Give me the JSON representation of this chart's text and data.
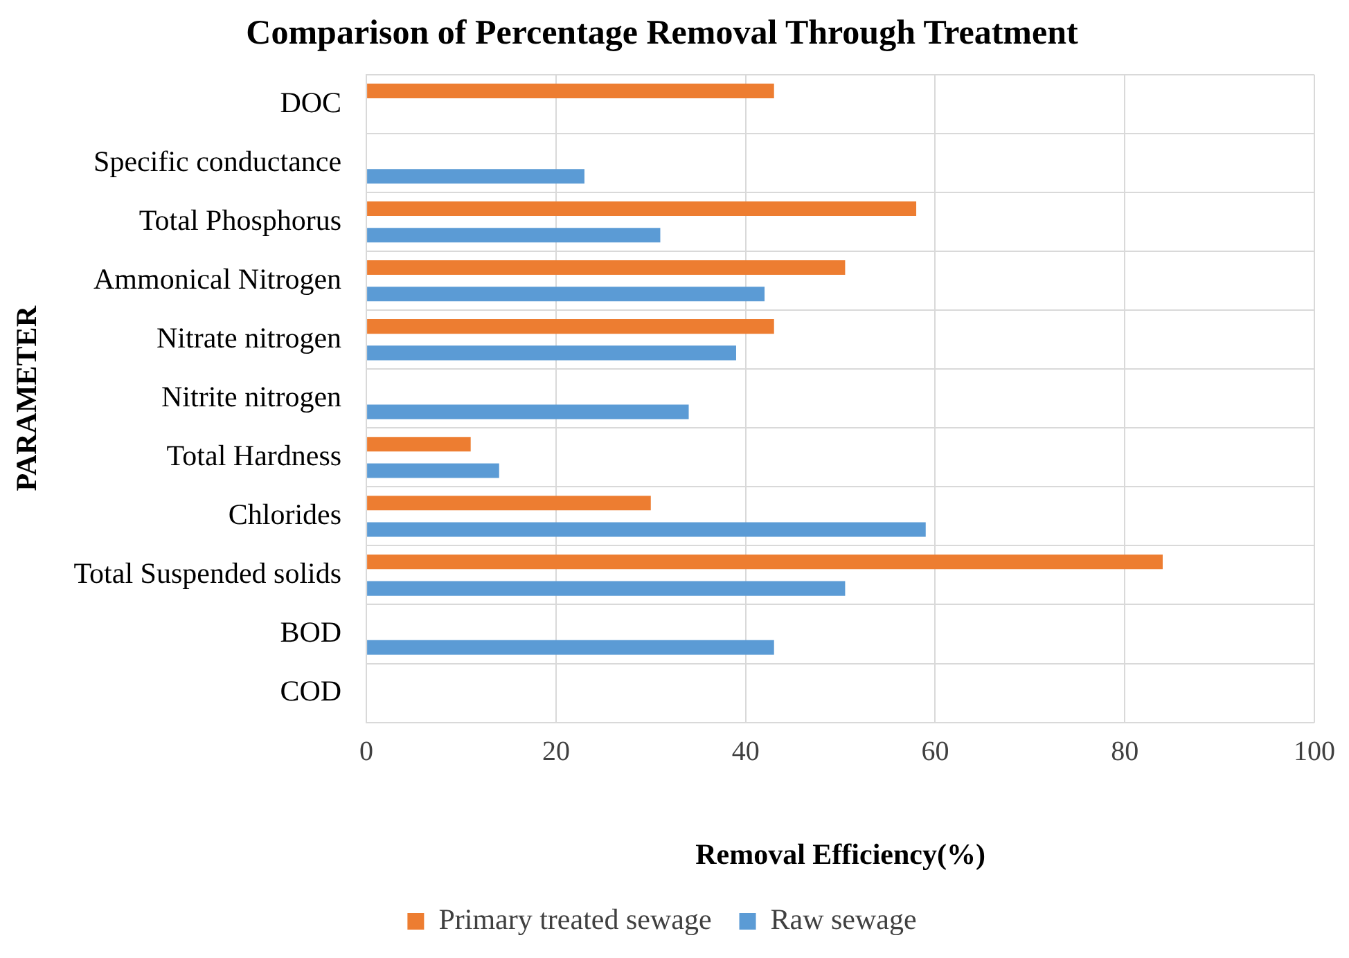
{
  "chart_data": {
    "type": "bar",
    "orientation": "horizontal",
    "title": "Comparison of Percentage Removal Through Treatment",
    "xlabel": "Removal Efficiency(%)",
    "ylabel": "PARAMETER",
    "categories": [
      "DOC",
      "Specific conductance",
      "Total Phosphorus",
      "Ammonical Nitrogen",
      "Nitrate nitrogen",
      "Nitrite nitrogen",
      "Total Hardness",
      "Chlorides",
      "Total Suspended solids",
      "BOD",
      "COD"
    ],
    "series": [
      {
        "name": "Primary treated sewage",
        "color": "#ed7d31",
        "values": [
          43,
          null,
          58,
          50.5,
          43,
          null,
          11,
          30,
          84,
          null,
          null
        ]
      },
      {
        "name": "Raw sewage",
        "color": "#5b9bd5",
        "values": [
          null,
          23,
          31,
          42,
          39,
          34,
          14,
          59,
          50.5,
          43,
          null
        ]
      }
    ],
    "xlim": [
      0,
      100
    ],
    "xticks": [
      0,
      20,
      40,
      60,
      80,
      100
    ],
    "grid": true,
    "legend": "bottom"
  }
}
